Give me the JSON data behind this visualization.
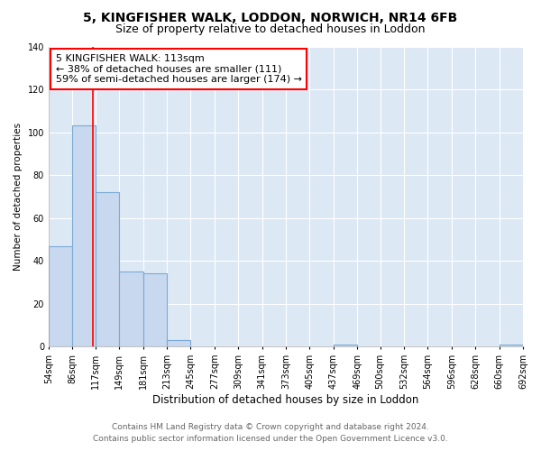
{
  "title_line1": "5, KINGFISHER WALK, LODDON, NORWICH, NR14 6FB",
  "title_line2": "Size of property relative to detached houses in Loddon",
  "xlabel": "Distribution of detached houses by size in Loddon",
  "ylabel": "Number of detached properties",
  "bin_edges": [
    54,
    86,
    117,
    149,
    181,
    213,
    245,
    277,
    309,
    341,
    373,
    405,
    437,
    469,
    500,
    532,
    564,
    596,
    628,
    660,
    692
  ],
  "bin_counts": [
    47,
    103,
    72,
    35,
    34,
    3,
    0,
    0,
    0,
    0,
    0,
    0,
    1,
    0,
    0,
    0,
    0,
    0,
    0,
    1
  ],
  "bar_color": "#c8d8ee",
  "bar_edge_color": "#7aaBd4",
  "red_line_x": 113,
  "annotation_line1": "5 KINGFISHER WALK: 113sqm",
  "annotation_line2": "← 38% of detached houses are smaller (111)",
  "annotation_line3": "59% of semi-detached houses are larger (174) →",
  "ylim": [
    0,
    140
  ],
  "yticks": [
    0,
    20,
    40,
    60,
    80,
    100,
    120,
    140
  ],
  "footer_line1": "Contains HM Land Registry data © Crown copyright and database right 2024.",
  "footer_line2": "Contains public sector information licensed under the Open Government Licence v3.0.",
  "fig_bg_color": "#ffffff",
  "plot_bg_color": "#dde8f5",
  "grid_color": "#ffffff",
  "title_fontsize": 10,
  "subtitle_fontsize": 9,
  "tick_label_fontsize": 7,
  "footer_fontsize": 6.5,
  "ylabel_fontsize": 7.5,
  "xlabel_fontsize": 8.5,
  "annot_fontsize": 8
}
